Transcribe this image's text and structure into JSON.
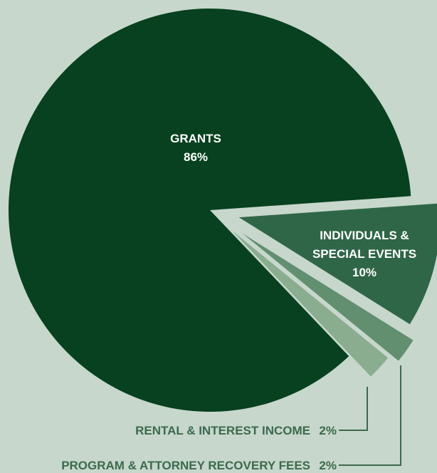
{
  "chart_data": {
    "type": "pie",
    "slices": [
      {
        "label_lines": [
          "GRANTS"
        ],
        "value": 86,
        "value_label": "86%",
        "color": "#07411f",
        "exploded": false
      },
      {
        "label_lines": [
          "INDIVIDUALS &",
          "SPECIAL EVENTS"
        ],
        "value": 10,
        "value_label": "10%",
        "color": "#2f6647",
        "exploded": true
      },
      {
        "label_lines": [
          "PROGRAM & ATTORNEY RECOVERY FEES"
        ],
        "value": 2,
        "value_label": "2%",
        "color": "#618f70",
        "exploded": true
      },
      {
        "label_lines": [
          "RENTAL & INTEREST INCOME"
        ],
        "value": 2,
        "value_label": "2%",
        "color": "#8aac8f",
        "exploded": true
      }
    ],
    "label_color": "#ffffff",
    "callout_color": "#3b6a4c"
  }
}
